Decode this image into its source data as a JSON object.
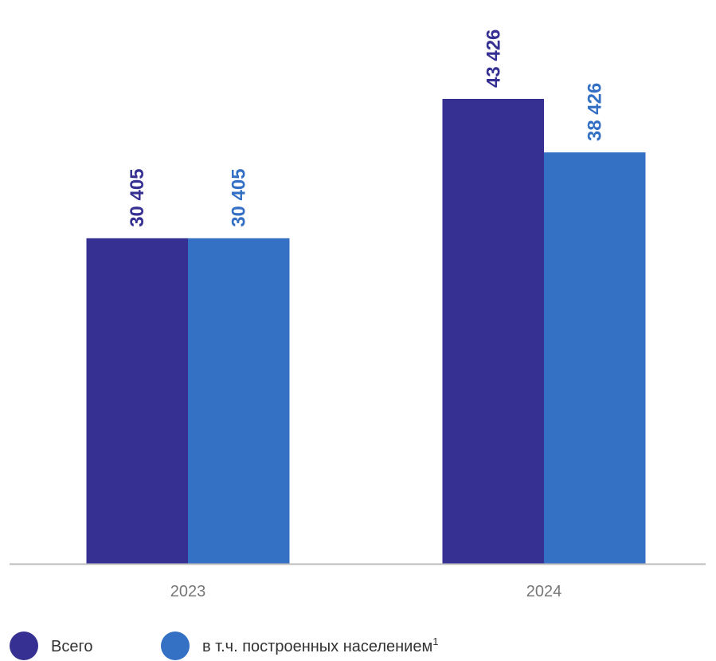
{
  "chart_data": {
    "type": "bar",
    "categories": [
      "2023",
      "2024"
    ],
    "series": [
      {
        "name": "Всего",
        "color": "#363093",
        "values": [
          30405,
          43426
        ],
        "value_labels": [
          "30 405",
          "43 426"
        ]
      },
      {
        "name": "в т.ч. построенных населением",
        "name_note": "1",
        "color": "#3470c4",
        "values": [
          30405,
          38426
        ],
        "value_labels": [
          "30 405",
          "38 426"
        ]
      }
    ]
  }
}
